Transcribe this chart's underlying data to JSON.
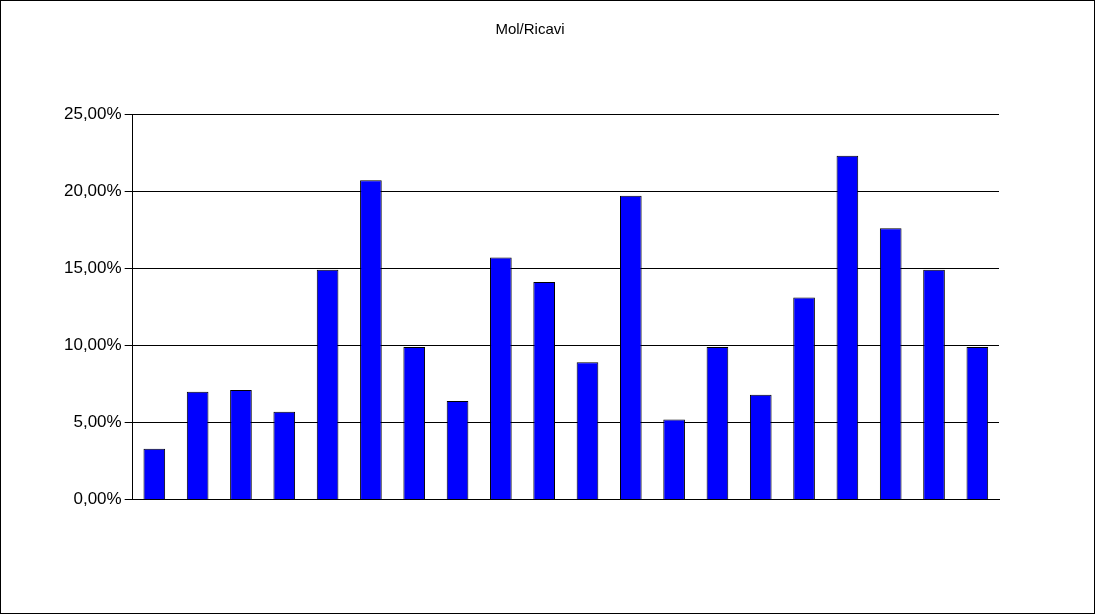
{
  "chart_data": {
    "type": "bar",
    "title": "Mol/Ricavi",
    "categories": [
      null,
      null,
      null,
      null,
      null,
      null,
      null,
      null,
      null,
      null,
      null,
      null,
      null,
      null,
      null,
      null,
      null,
      null,
      null,
      null
    ],
    "values": [
      3.3,
      7.0,
      7.1,
      5.7,
      14.9,
      20.7,
      9.9,
      6.4,
      15.7,
      14.1,
      8.9,
      19.7,
      5.2,
      9.9,
      6.8,
      13.1,
      22.3,
      17.6,
      14.9,
      9.9
    ],
    "color": "#0000ff",
    "ylim": [
      0,
      25
    ],
    "yticks": [
      {
        "value": 0,
        "label": "0,00%"
      },
      {
        "value": 5,
        "label": "5,00%"
      },
      {
        "value": 10,
        "label": "10,00%"
      },
      {
        "value": 15,
        "label": "15,00%"
      },
      {
        "value": 20,
        "label": "20,00%"
      },
      {
        "value": 25,
        "label": "25,00%"
      }
    ],
    "grid": "y"
  }
}
